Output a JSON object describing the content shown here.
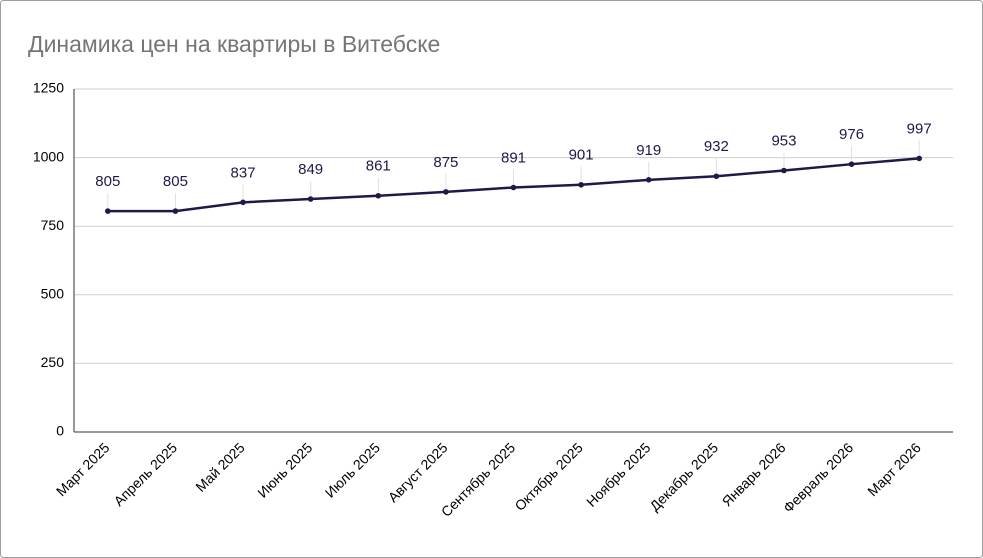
{
  "chart_data": {
    "type": "line",
    "title": "Динамика цен на квартиры в Витебске",
    "categories": [
      "Март 2025",
      "Апрель 2025",
      "Май 2025",
      "Июнь 2025",
      "Июль 2025",
      "Август 2025",
      "Сентябрь 2025",
      "Октябрь 2025",
      "Ноябрь 2025",
      "Декабрь 2025",
      "Январь 2026",
      "Февраль 2026",
      "Март 2026"
    ],
    "values": [
      805,
      805,
      837,
      849,
      861,
      875,
      891,
      901,
      919,
      932,
      953,
      976,
      997
    ],
    "color": "#1e1a48",
    "ylim": [
      0,
      1250
    ],
    "yticks": [
      0,
      250,
      500,
      750,
      1000,
      1250
    ],
    "grid": true
  }
}
